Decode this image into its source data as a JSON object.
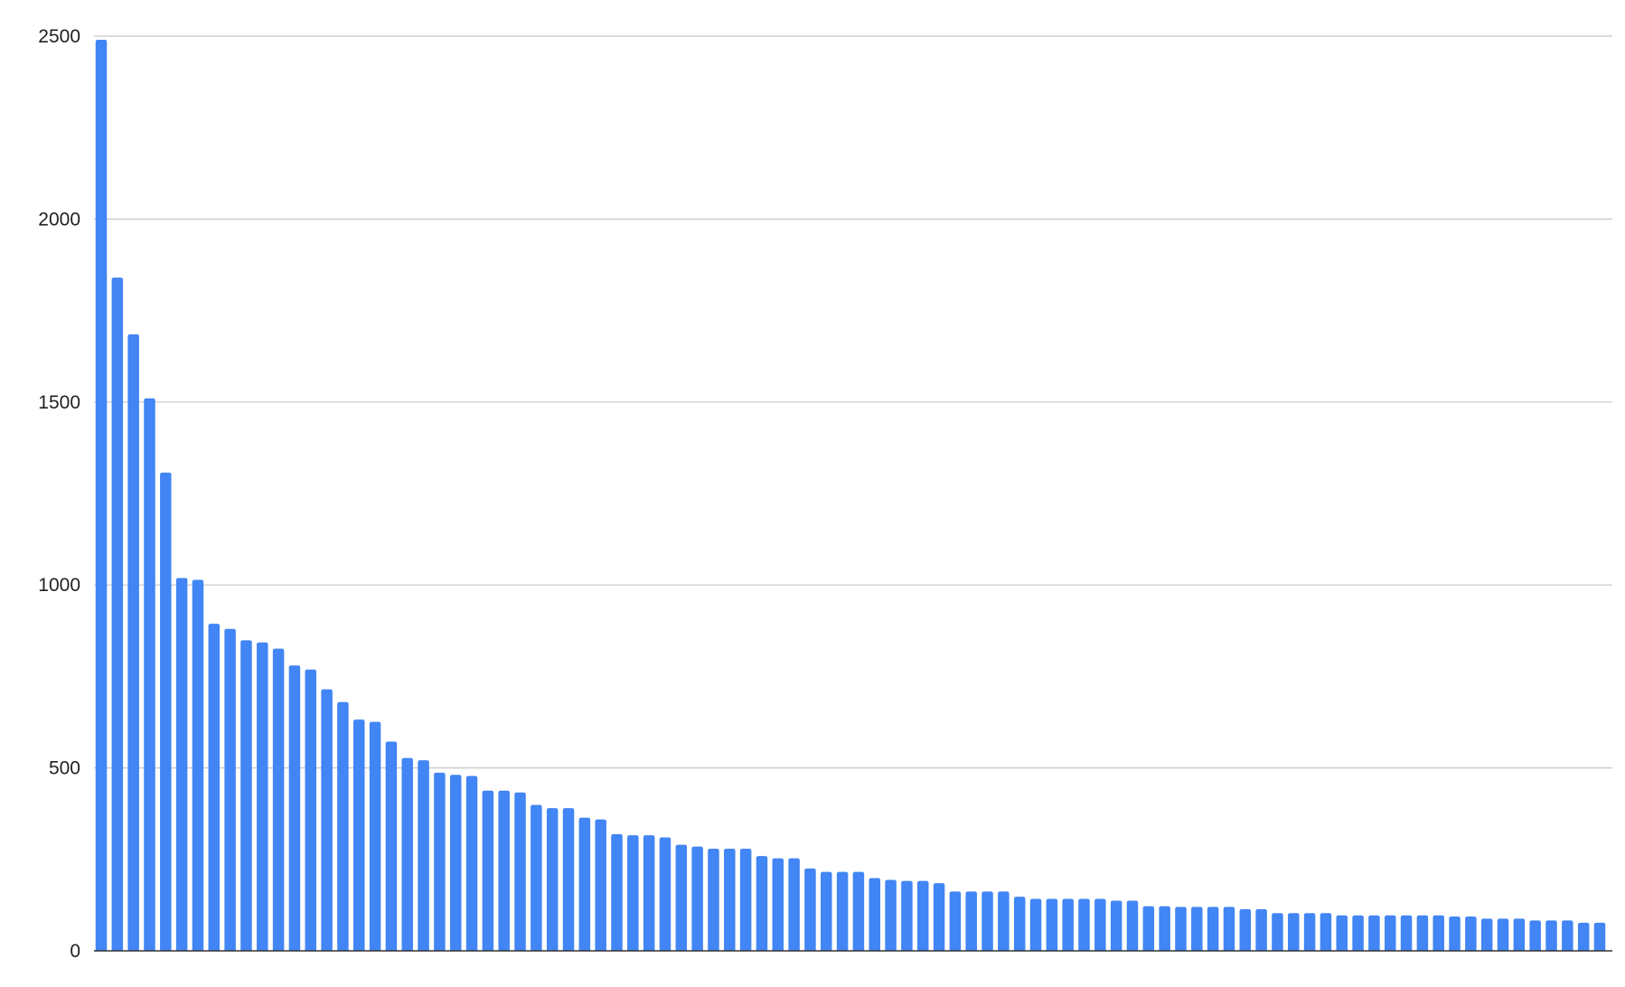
{
  "chart_data": {
    "type": "bar",
    "title": "",
    "xlabel": "",
    "ylabel": "",
    "ylim": [
      0,
      2500
    ],
    "yticks": [
      "0",
      "500",
      "1000",
      "1500",
      "2000",
      "2500"
    ],
    "grid": true,
    "legend": "none",
    "color": "#4285f4",
    "values": [
      2490,
      1840,
      1685,
      1510,
      1307,
      1019,
      1014,
      894,
      880,
      849,
      843,
      826,
      780,
      769,
      715,
      680,
      632,
      626,
      572,
      527,
      521,
      487,
      481,
      478,
      438,
      438,
      433,
      399,
      390,
      390,
      364,
      359,
      319,
      316,
      316,
      310,
      290,
      285,
      279,
      279,
      279,
      259,
      253,
      253,
      225,
      216,
      216,
      216,
      199,
      194,
      191,
      191,
      185,
      162,
      162,
      162,
      162,
      148,
      142,
      142,
      142,
      142,
      142,
      137,
      137,
      122,
      122,
      120,
      120,
      120,
      120,
      114,
      114,
      103,
      103,
      103,
      103,
      97,
      97,
      97,
      97,
      97,
      97,
      97,
      94,
      94,
      88,
      88,
      88,
      83,
      83,
      83,
      77,
      77
    ]
  }
}
